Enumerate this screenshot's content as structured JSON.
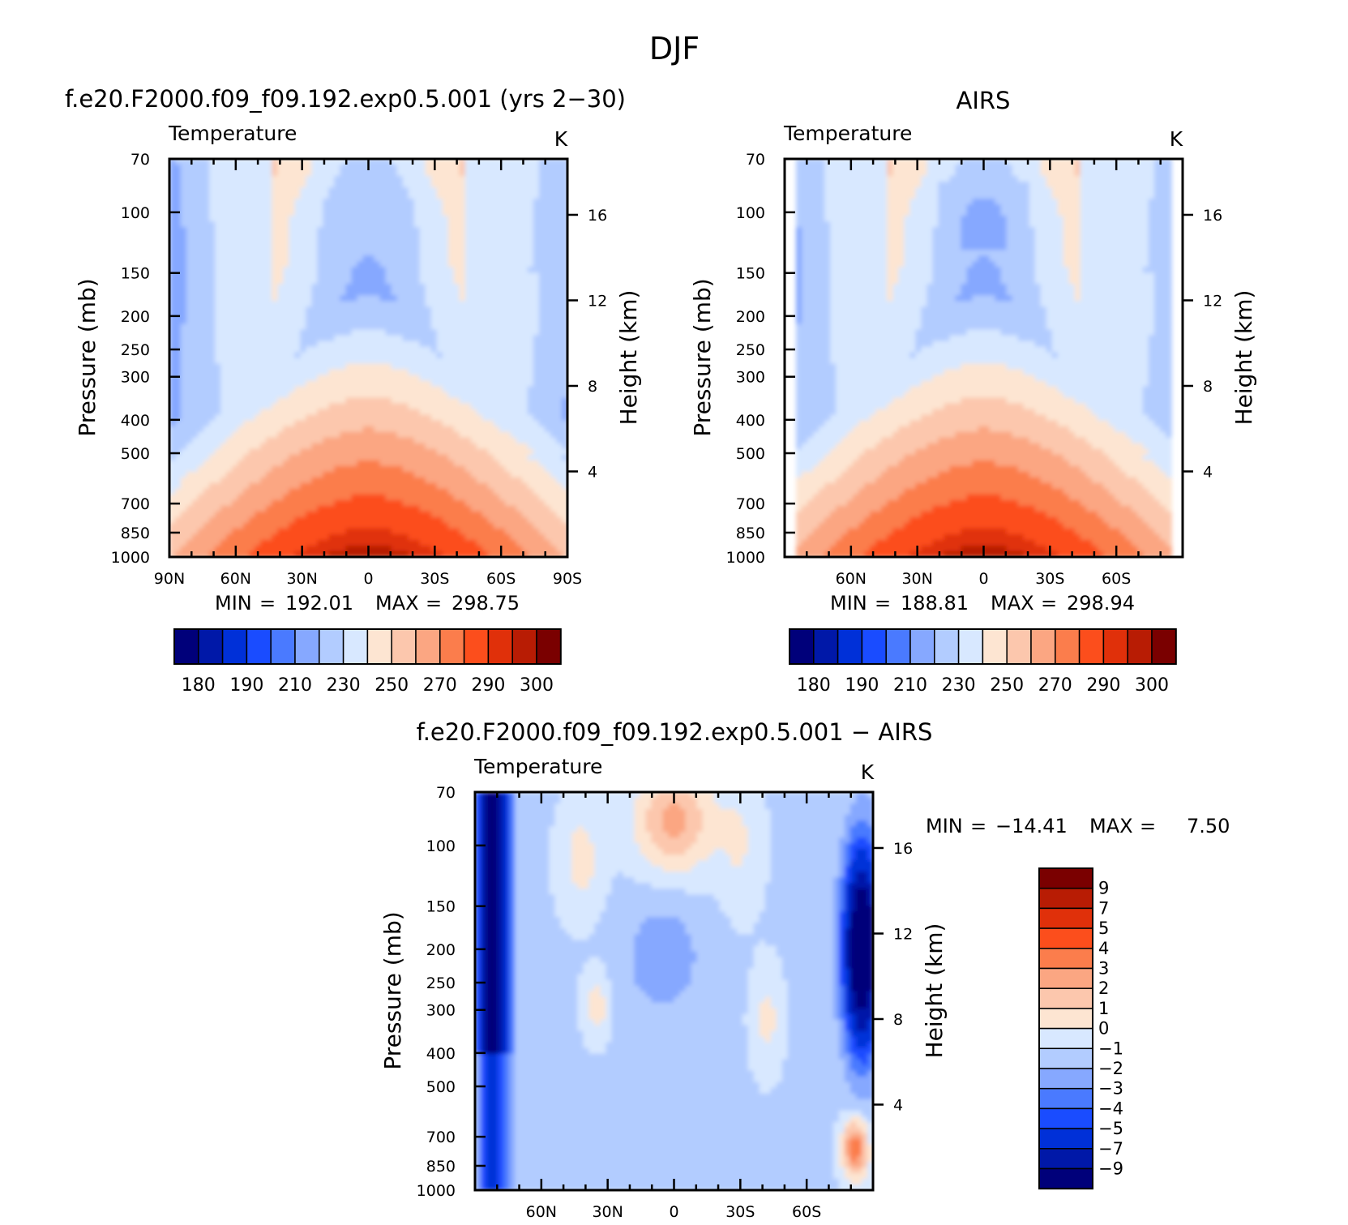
{
  "figure_title": "DJF",
  "chart_data": [
    {
      "type": "contour",
      "title": "f.e20.F2000.f09_f09.192.exp0.5.001 (yrs 2−30)",
      "subtitle": "Temperature",
      "units": "K",
      "ylabel": "Pressure (mb)",
      "ylabel_right": "Height (km)",
      "y_ticks": [
        "70",
        "100",
        "150",
        "200",
        "250",
        "300",
        "400",
        "500",
        "700",
        "850",
        "1000"
      ],
      "y_ticks_right": [
        "16",
        "12",
        "8",
        "4"
      ],
      "x_ticks": [
        "90N",
        "60N",
        "30N",
        "0",
        "30S",
        "60S",
        "90S"
      ],
      "stats": {
        "min_label": "MIN",
        "min": "192.01",
        "max_label": "MAX",
        "max": "298.75"
      },
      "colorbar": {
        "labels": [
          "180",
          "190",
          "210",
          "230",
          "250",
          "270",
          "290",
          "300"
        ]
      },
      "fields": [
        {
          "name": "tropopause_core_min",
          "lat": 0,
          "pressure": 100,
          "value": 192
        },
        {
          "name": "surface_max",
          "lat": 0,
          "pressure": 1000,
          "value": 298.75
        }
      ]
    },
    {
      "type": "contour",
      "title": "AIRS",
      "subtitle": "Temperature",
      "units": "K",
      "ylabel": "Pressure (mb)",
      "ylabel_right": "Height (km)",
      "y_ticks": [
        "70",
        "100",
        "150",
        "200",
        "250",
        "300",
        "400",
        "500",
        "700",
        "850",
        "1000"
      ],
      "y_ticks_right": [
        "16",
        "12",
        "8",
        "4"
      ],
      "x_ticks": [
        "60N",
        "30N",
        "0",
        "30S",
        "60S"
      ],
      "stats": {
        "min_label": "MIN",
        "min": "188.81",
        "max_label": "MAX",
        "max": "298.94"
      },
      "colorbar": {
        "labels": [
          "180",
          "190",
          "210",
          "230",
          "250",
          "270",
          "290",
          "300"
        ]
      },
      "fields": [
        {
          "name": "tropopause_core_min",
          "lat": 0,
          "pressure": 100,
          "value": 188.81
        },
        {
          "name": "surface_max",
          "lat": 0,
          "pressure": 1000,
          "value": 298.94
        }
      ]
    },
    {
      "type": "contour",
      "title": "f.e20.F2000.f09_f09.192.exp0.5.001 − AIRS",
      "subtitle": "Temperature",
      "units": "K",
      "ylabel": "Pressure (mb)",
      "ylabel_right": "Height (km)",
      "y_ticks": [
        "70",
        "100",
        "150",
        "200",
        "250",
        "300",
        "400",
        "500",
        "700",
        "850",
        "1000"
      ],
      "y_ticks_right": [
        "16",
        "12",
        "8",
        "4"
      ],
      "x_ticks": [
        "60N",
        "30N",
        "0",
        "30S",
        "60S"
      ],
      "stats": {
        "min_label": "MIN",
        "min": "−14.41",
        "max_label": "MAX",
        "max": "7.50"
      },
      "colorbar": {
        "labels": [
          "9",
          "7",
          "5",
          "4",
          "3",
          "2",
          "1",
          "0",
          "−1",
          "−2",
          "−3",
          "−4",
          "−5",
          "−7",
          "−9"
        ]
      },
      "fields": [
        {
          "name": "north_polar_cold_bias",
          "lat": 80,
          "pressure": 150,
          "value": -9
        },
        {
          "name": "south_polar_cold_bias",
          "lat": -80,
          "pressure": 200,
          "value": -14.41
        },
        {
          "name": "tropical_upper_warm_bias",
          "lat": 0,
          "pressure": 85,
          "value": 4
        }
      ]
    }
  ],
  "colors": {
    "abs_scale": [
      "#00007a",
      "#0018a8",
      "#0030d8",
      "#1a4cff",
      "#4a7aff",
      "#86a8ff",
      "#b2ccff",
      "#d8e8ff",
      "#fde5d2",
      "#fcc7ad",
      "#fba682",
      "#fb7d4c",
      "#fc4e1c",
      "#e0300a",
      "#b81c04",
      "#7a0000"
    ],
    "diff_scale": [
      "#7a0000",
      "#b81c04",
      "#e0300a",
      "#fc4e1c",
      "#fb7d4c",
      "#fba682",
      "#fcc7ad",
      "#fde5d2",
      "#d8e8ff",
      "#b2ccff",
      "#86a8ff",
      "#4a7aff",
      "#1a4cff",
      "#0030d8",
      "#0018a8",
      "#00007a"
    ]
  }
}
